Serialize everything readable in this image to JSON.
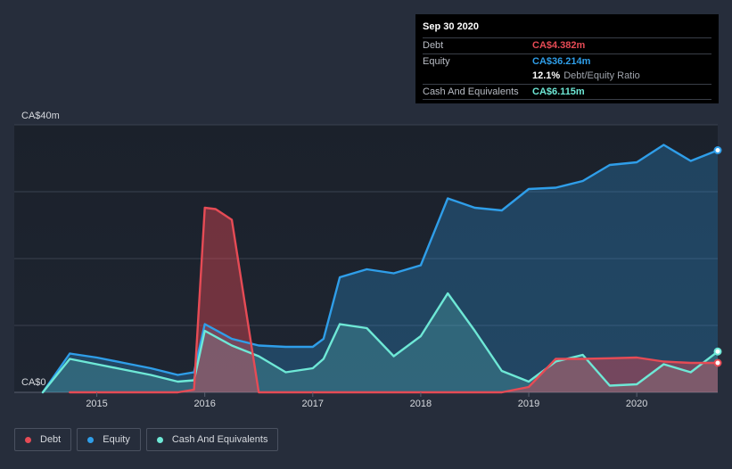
{
  "tooltip": {
    "date": "Sep 30 2020",
    "rows": [
      {
        "label": "Debt",
        "value": "CA$4.382m",
        "color": "#e64b55"
      },
      {
        "label": "Equity",
        "value": "CA$36.214m",
        "color": "#2f9ee9"
      },
      {
        "ratio_value": "12.1%",
        "ratio_label": "Debt/Equity Ratio"
      },
      {
        "label": "Cash And Equivalents",
        "value": "CA$6.115m",
        "color": "#6ee8d6"
      }
    ]
  },
  "legend": [
    {
      "label": "Debt",
      "color": "#e64b55"
    },
    {
      "label": "Equity",
      "color": "#2f9ee9"
    },
    {
      "label": "Cash And Equivalents",
      "color": "#6ee8d6"
    }
  ],
  "chart_data": {
    "type": "area",
    "y_tick_labels": [
      "CA$40m",
      "CA$0"
    ],
    "ylim": [
      0,
      40
    ],
    "xlim": [
      2014.5,
      2020.75
    ],
    "x_tick_labels": [
      "2015",
      "2016",
      "2017",
      "2018",
      "2019",
      "2020"
    ],
    "x_ticks": [
      2015,
      2016,
      2017,
      2018,
      2019,
      2020
    ],
    "grid": true,
    "series": [
      {
        "name": "Equity",
        "color": "#2f9ee9",
        "points": [
          [
            2014.5,
            0
          ],
          [
            2014.75,
            5.8
          ],
          [
            2015.0,
            5.2
          ],
          [
            2015.25,
            4.4
          ],
          [
            2015.5,
            3.6
          ],
          [
            2015.75,
            2.6
          ],
          [
            2015.9,
            3.0
          ],
          [
            2016.0,
            10.2
          ],
          [
            2016.25,
            8.0
          ],
          [
            2016.5,
            7.0
          ],
          [
            2016.75,
            6.8
          ],
          [
            2017.0,
            6.8
          ],
          [
            2017.1,
            8.0
          ],
          [
            2017.25,
            17.2
          ],
          [
            2017.5,
            18.4
          ],
          [
            2017.75,
            17.8
          ],
          [
            2018.0,
            19.0
          ],
          [
            2018.25,
            29.0
          ],
          [
            2018.5,
            27.6
          ],
          [
            2018.75,
            27.2
          ],
          [
            2019.0,
            30.4
          ],
          [
            2019.25,
            30.6
          ],
          [
            2019.5,
            31.6
          ],
          [
            2019.75,
            34.0
          ],
          [
            2020.0,
            34.4
          ],
          [
            2020.25,
            37.0
          ],
          [
            2020.5,
            34.6
          ],
          [
            2020.75,
            36.2
          ]
        ]
      },
      {
        "name": "Cash And Equivalents",
        "color": "#6ee8d6",
        "points": [
          [
            2014.5,
            0
          ],
          [
            2014.75,
            5.0
          ],
          [
            2015.0,
            4.2
          ],
          [
            2015.25,
            3.4
          ],
          [
            2015.5,
            2.6
          ],
          [
            2015.75,
            1.6
          ],
          [
            2015.9,
            1.8
          ],
          [
            2016.0,
            9.2
          ],
          [
            2016.25,
            7.0
          ],
          [
            2016.5,
            5.4
          ],
          [
            2016.75,
            3.0
          ],
          [
            2017.0,
            3.6
          ],
          [
            2017.1,
            5.0
          ],
          [
            2017.25,
            10.2
          ],
          [
            2017.5,
            9.6
          ],
          [
            2017.75,
            5.4
          ],
          [
            2018.0,
            8.4
          ],
          [
            2018.25,
            14.8
          ],
          [
            2018.5,
            9.2
          ],
          [
            2018.75,
            3.2
          ],
          [
            2019.0,
            1.6
          ],
          [
            2019.25,
            4.6
          ],
          [
            2019.5,
            5.6
          ],
          [
            2019.75,
            1.0
          ],
          [
            2020.0,
            1.2
          ],
          [
            2020.25,
            4.2
          ],
          [
            2020.5,
            3.0
          ],
          [
            2020.75,
            6.1
          ]
        ]
      },
      {
        "name": "Debt",
        "color": "#e64b55",
        "points": [
          [
            2014.75,
            0
          ],
          [
            2015.75,
            0
          ],
          [
            2015.9,
            0.4
          ],
          [
            2016.0,
            27.6
          ],
          [
            2016.1,
            27.4
          ],
          [
            2016.25,
            25.8
          ],
          [
            2016.5,
            0
          ],
          [
            2018.75,
            0
          ],
          [
            2019.0,
            0.8
          ],
          [
            2019.25,
            5.0
          ],
          [
            2019.5,
            5.0
          ],
          [
            2019.75,
            5.1
          ],
          [
            2020.0,
            5.2
          ],
          [
            2020.25,
            4.6
          ],
          [
            2020.5,
            4.4
          ],
          [
            2020.75,
            4.4
          ]
        ]
      }
    ]
  }
}
